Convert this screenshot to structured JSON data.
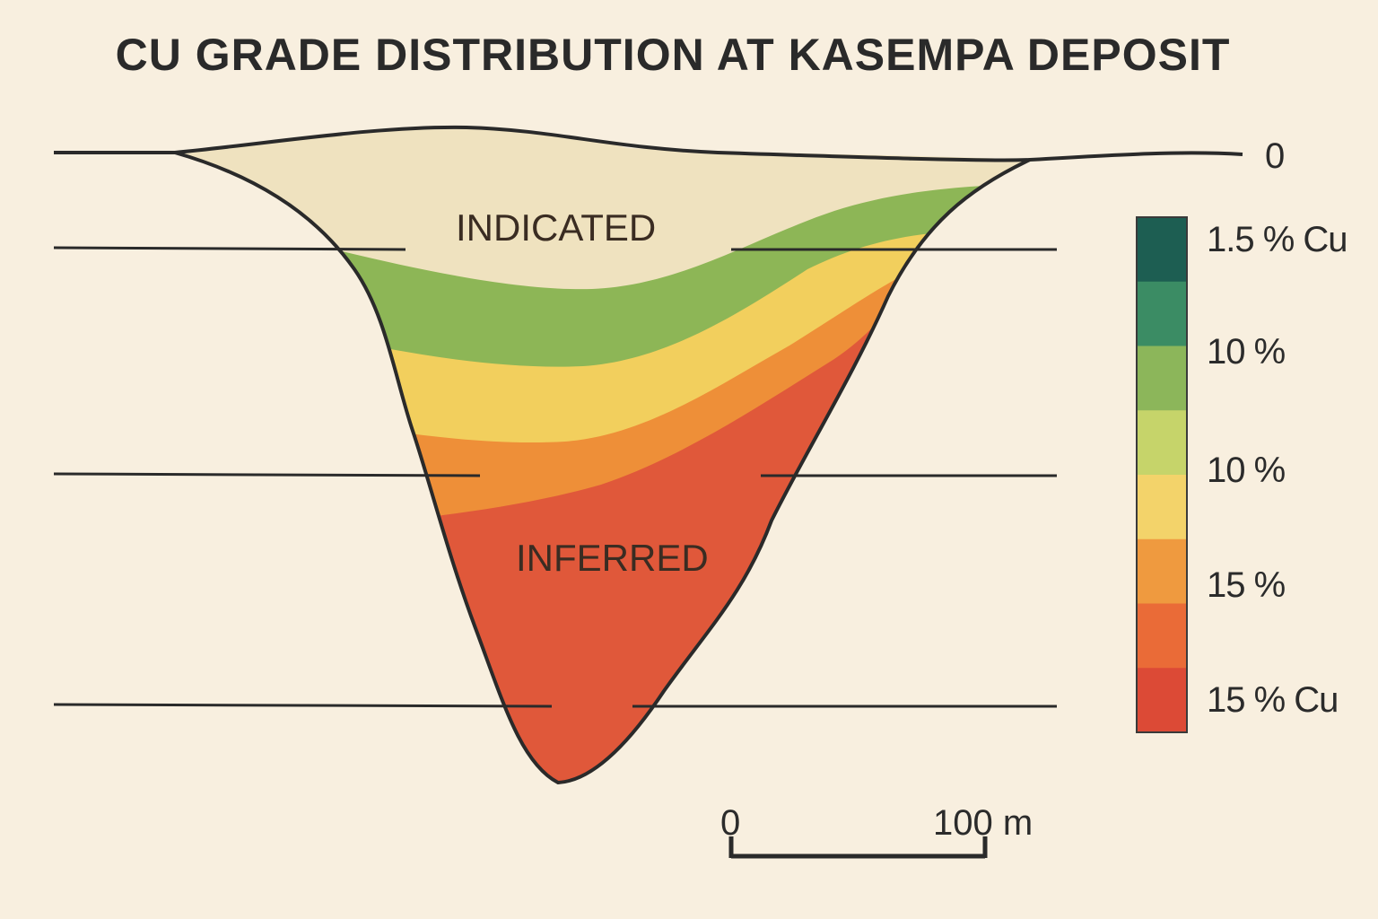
{
  "title": "CU GRADE DISTRIBUTION AT KASEMPA DEPOSIT",
  "zones": {
    "indicated": "INDICATED",
    "inferred": "INFERRED"
  },
  "depth_label": "0",
  "legend": {
    "labels": [
      "1.5 % Cu",
      "10 %",
      "10 %",
      "15 %",
      "15 % Cu"
    ],
    "colors": [
      "#1d5e52",
      "#3b8c64",
      "#8cb65a",
      "#c6d46a",
      "#f3d36a",
      "#ef9a3f",
      "#ea6b37",
      "#dc4a36"
    ]
  },
  "layer_colors": {
    "indicated": "#efe2bf",
    "green": "#8db656",
    "yellow": "#f2cf5d",
    "orange": "#ee8f38",
    "red": "#e0583a",
    "outline": "#2a2a2a"
  },
  "scale_bar": {
    "start": "0",
    "end": "100 m"
  }
}
